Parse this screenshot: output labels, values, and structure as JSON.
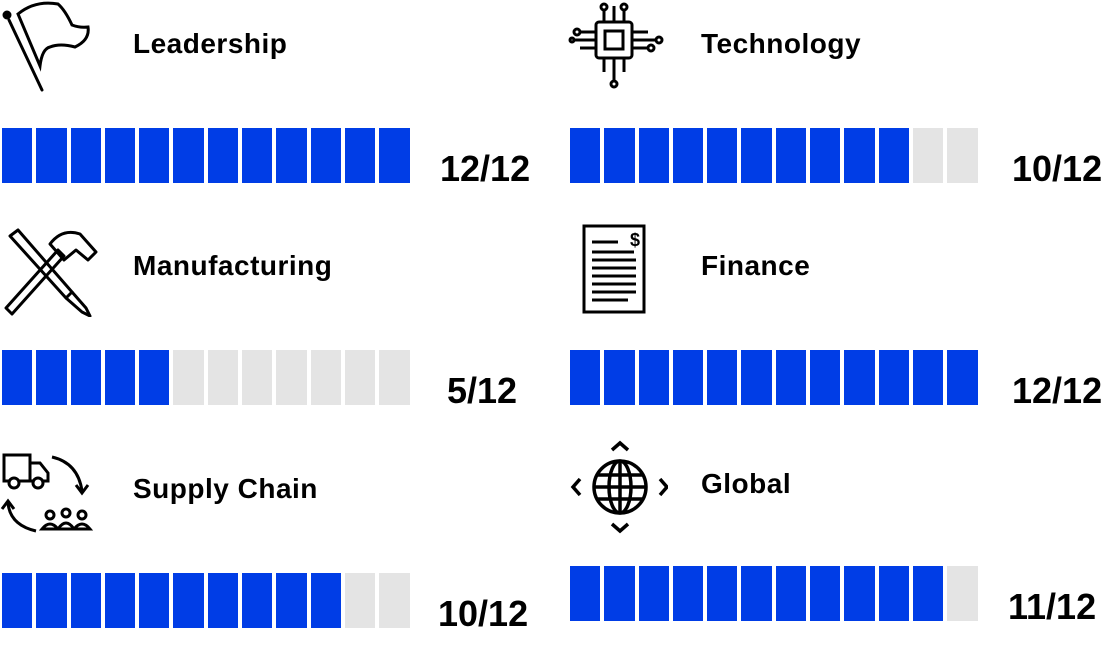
{
  "colors": {
    "filled": "#003de6",
    "empty": "#e4e4e4"
  },
  "total_segments": 12,
  "skills": [
    {
      "name": "Leadership",
      "icon": "flag-icon",
      "value": 12,
      "score": "12/12"
    },
    {
      "name": "Technology",
      "icon": "circuit-chip-icon",
      "value": 10,
      "score": "10/12"
    },
    {
      "name": "Manufacturing",
      "icon": "hammer-screwdriver-icon",
      "value": 5,
      "score": "5/12"
    },
    {
      "name": "Finance",
      "icon": "invoice-document-icon",
      "value": 12,
      "score": "12/12"
    },
    {
      "name": "Supply Chain",
      "icon": "truck-cycle-people-icon",
      "value": 10,
      "score": "10/12"
    },
    {
      "name": "Global",
      "icon": "globe-arrows-icon",
      "value": 11,
      "score": "11/12"
    }
  ]
}
